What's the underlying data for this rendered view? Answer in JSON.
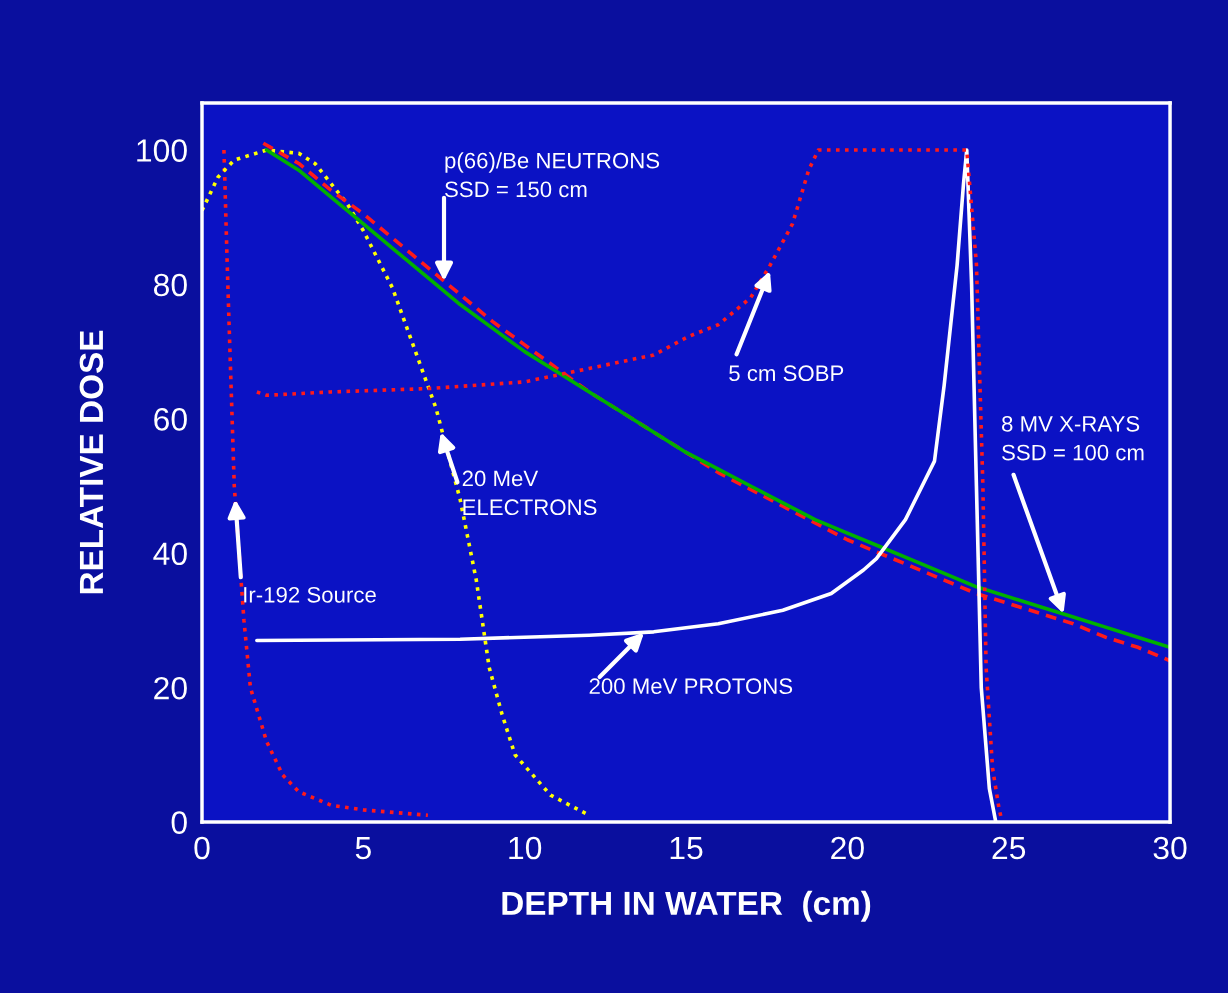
{
  "chart_data": {
    "type": "line",
    "xlabel": "DEPTH IN WATER  (cm)",
    "ylabel": "RELATIVE DOSE",
    "xlim": [
      0,
      30
    ],
    "ylim": [
      0,
      107
    ],
    "xticks": [
      0,
      5,
      10,
      15,
      20,
      25,
      30
    ],
    "yticks": [
      0,
      20,
      40,
      60,
      80,
      100
    ],
    "grid": false,
    "legend": false,
    "marker": "none",
    "series": [
      {
        "color": "#ff1a1a",
        "line_style": "dotted",
        "x": [
          0.68,
          0.8,
          1.0,
          1.3,
          1.5,
          2.0,
          2.5,
          3.0,
          4.0,
          5.0,
          7.0
        ],
        "values": [
          100,
          80,
          50,
          30,
          20,
          12,
          7,
          4.5,
          2.5,
          1.8,
          1.0
        ]
      },
      {
        "color": "#ffff00",
        "line_style": "dotted",
        "x": [
          0,
          0.5,
          1,
          2,
          3,
          3.5,
          4.5,
          5,
          5.9,
          7.25,
          8,
          8.5,
          8.9,
          9.3,
          9.7,
          10.8,
          12
        ],
        "values": [
          91,
          96,
          98.5,
          100,
          99.5,
          98,
          92,
          88,
          79.5,
          61.6,
          48,
          36,
          23,
          16,
          10,
          4,
          1
        ]
      },
      {
        "color": "#ff1a1a",
        "line_style": "dashed",
        "x": [
          1.9,
          3,
          4,
          5,
          6,
          7,
          8,
          9,
          10,
          11,
          12,
          13,
          14,
          15,
          16,
          17,
          18,
          19,
          20,
          21,
          22,
          23,
          24,
          25,
          26,
          27,
          28,
          29,
          30
        ],
        "values": [
          101,
          98,
          94,
          90.5,
          86.5,
          82.5,
          78.5,
          74.5,
          71,
          67.5,
          64,
          61,
          58,
          55,
          52,
          49.5,
          47,
          44.5,
          42,
          40,
          38,
          36,
          34,
          32.5,
          31,
          29.5,
          27.5,
          26,
          24
        ]
      },
      {
        "color": "#00b000",
        "line_style": "solid",
        "x": [
          2,
          3,
          4,
          5,
          6,
          7,
          8,
          9,
          10,
          11,
          12,
          13,
          14,
          15,
          16,
          17,
          18,
          19,
          20,
          21,
          22,
          23,
          24,
          25,
          26,
          27,
          28,
          29,
          30
        ],
        "values": [
          100,
          97,
          93,
          89,
          85,
          81,
          77,
          73.5,
          70,
          67,
          64,
          61,
          58,
          55,
          52.5,
          50,
          47.5,
          45,
          43,
          41,
          39,
          37,
          35,
          33.5,
          32,
          30.5,
          29,
          27.5,
          26
        ]
      },
      {
        "color": "#ffffff",
        "line_style": "solid",
        "x": [
          1.7,
          8,
          12,
          14,
          16,
          18,
          19.5,
          20.5,
          20.9,
          21.8,
          22.7,
          23.0,
          23.4,
          23.6,
          23.7,
          23.85,
          24.0,
          24.15,
          24.4,
          24.6
        ],
        "values": [
          27,
          27.2,
          27.8,
          28.3,
          29.5,
          31.5,
          34,
          37.5,
          39.2,
          45,
          53.7,
          65,
          82.8,
          95,
          100,
          80,
          50,
          20,
          5,
          0
        ]
      },
      {
        "color": "#ff1a1a",
        "line_style": "dotted",
        "x": [
          1.7,
          2,
          4,
          7,
          10,
          12,
          14,
          15.1,
          16,
          17,
          17.6,
          18.3,
          18.8,
          19.1,
          21,
          23,
          23.7,
          24.0,
          24.2,
          24.3,
          24.5,
          24.7,
          24.8
        ],
        "values": [
          64,
          63.5,
          64,
          64.5,
          65.5,
          67.5,
          69.5,
          72.3,
          74,
          78,
          82.8,
          89,
          97,
          100,
          100,
          100,
          100,
          83,
          50,
          23,
          8,
          2,
          0
        ]
      }
    ],
    "annotations": [
      {
        "text": "p(66)/Be NEUTRONS\nSSD = 150 cm",
        "x": 7.5,
        "y": 80.5
      },
      {
        "text": "5 cm SOBP",
        "x": 17.6,
        "y": 82
      },
      {
        "text": "8 MV X-RAYS\nSSD = 100 cm",
        "x": 26.7,
        "y": 31
      },
      {
        "text": "20 MeV\nELECTRONS",
        "x": 7.4,
        "y": 58
      },
      {
        "text": "Ir-192 Source",
        "x": 1.03,
        "y": 48
      },
      {
        "text": "200 MeV PROTONS",
        "x": 13.7,
        "y": 28.2
      }
    ]
  }
}
